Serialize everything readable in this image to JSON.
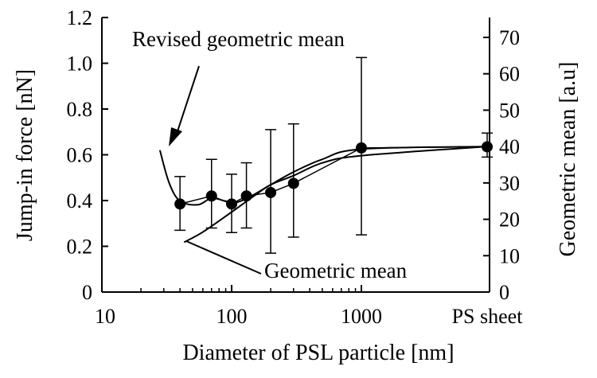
{
  "chart_data": {
    "type": "scatter",
    "title": "",
    "xlabel": "Diameter of PSL particle [nm]",
    "ylabel": "Jump-in force [nN]",
    "y2label": "Geometric mean [a.u]",
    "xscale": "log",
    "x_tick_labels": [
      "10",
      "100",
      "1000",
      "PS sheet"
    ],
    "y_ticks": [
      "0",
      "0.2",
      "0.4",
      "0.6",
      "0.8",
      "1.0",
      "1.2"
    ],
    "y2_ticks": [
      "0",
      "10",
      "20",
      "30",
      "40",
      "50",
      "60",
      "70"
    ],
    "ylim": [
      0,
      1.2
    ],
    "y2lim": [
      0,
      75
    ],
    "grid": false,
    "legend": "none",
    "series": [
      {
        "x": [
          40,
          70,
          100,
          130,
          200,
          300,
          1000,
          "PS sheet"
        ],
        "y": [
          0.385,
          0.42,
          0.385,
          0.42,
          0.435,
          0.475,
          0.63,
          0.635
        ],
        "error_lower": [
          0.27,
          0.28,
          0.26,
          0.28,
          0.17,
          0.24,
          0.25,
          0.59
        ],
        "error_upper": [
          0.505,
          0.58,
          0.515,
          0.565,
          0.71,
          0.735,
          1.025,
          0.695
        ]
      }
    ],
    "curves": {
      "geometric_mean": [
        [
          43,
          13.7
        ],
        [
          60,
          16.5
        ],
        [
          100,
          22
        ],
        [
          150,
          26.5
        ],
        [
          200,
          29.5
        ],
        [
          300,
          32
        ],
        [
          500,
          35.5
        ],
        [
          1000,
          37.5
        ],
        [
          "PS sheet",
          40
        ]
      ],
      "revised_geometric_mean": [
        [
          28,
          39
        ],
        [
          33,
          30
        ],
        [
          40,
          25
        ],
        [
          55,
          24
        ],
        [
          70,
          25.8
        ],
        [
          90,
          25
        ],
        [
          110,
          24.7
        ],
        [
          140,
          26.3
        ],
        [
          200,
          29.5
        ],
        [
          300,
          33
        ],
        [
          500,
          36.5
        ],
        [
          1000,
          39.3
        ],
        [
          "PS sheet",
          40
        ]
      ]
    },
    "annotations": [
      "Revised geometric mean",
      "Geometric mean"
    ],
    "colors": {
      "line": "#000000",
      "marker": "#000000"
    }
  }
}
